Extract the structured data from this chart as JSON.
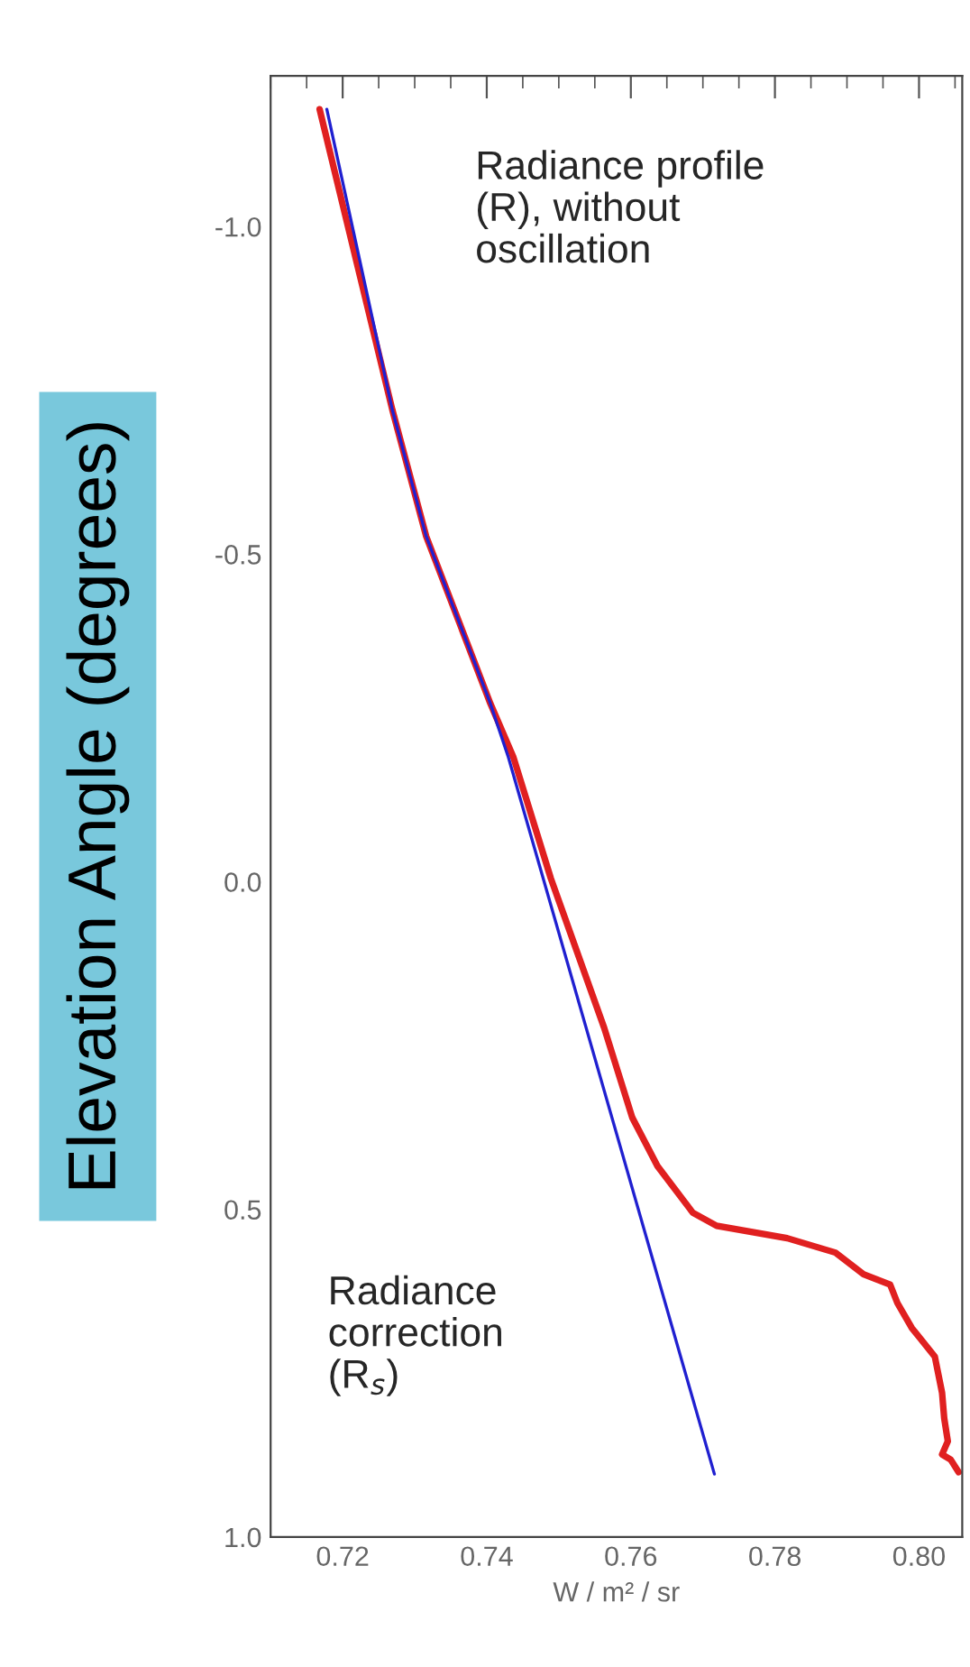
{
  "chart_data": {
    "type": "line",
    "xlabel": "W / m² / sr",
    "ylabel": "Elevation Angle (degrees)",
    "xlim": [
      0.71,
      0.806
    ],
    "xticks": [
      {
        "value": 0.72,
        "label": "0.72"
      },
      {
        "value": 0.74,
        "label": "0.74"
      },
      {
        "value": 0.76,
        "label": "0.76"
      },
      {
        "value": 0.78,
        "label": "0.78"
      },
      {
        "value": 0.8,
        "label": "0.80"
      }
    ],
    "ylim": [
      1.0,
      -1.23
    ],
    "yticks": [
      {
        "value": -1.0,
        "label": "-1.0"
      },
      {
        "value": -0.5,
        "label": "-0.5"
      },
      {
        "value": 0.0,
        "label": "0.0"
      },
      {
        "value": 0.5,
        "label": "0.5"
      },
      {
        "value": 1.0,
        "label": "1.0"
      }
    ],
    "grid": false,
    "legend": false,
    "marker": "none",
    "line_style": "solid",
    "series": [
      {
        "color": "#e02020",
        "x": [
          0.7168,
          0.7269,
          0.7316,
          0.7405,
          0.7437,
          0.7489,
          0.7563,
          0.7602,
          0.7637,
          0.7686,
          0.7719,
          0.7817,
          0.7884,
          0.7923,
          0.796,
          0.797,
          0.799,
          0.8022,
          0.8032,
          0.8035,
          0.804,
          0.8032,
          0.8044,
          0.8055
        ],
        "values": [
          -1.179,
          -0.72,
          -0.527,
          -0.272,
          -0.19,
          -0.005,
          0.223,
          0.36,
          0.434,
          0.505,
          0.525,
          0.544,
          0.566,
          0.599,
          0.615,
          0.643,
          0.681,
          0.725,
          0.78,
          0.819,
          0.854,
          0.874,
          0.882,
          0.901
        ]
      },
      {
        "color": "#2020d0",
        "x": [
          0.7178,
          0.7269,
          0.7316,
          0.7405,
          0.743,
          0.7716
        ],
        "values": [
          -1.179,
          -0.72,
          -0.527,
          -0.272,
          -0.19,
          0.904
        ]
      }
    ],
    "annotations": [
      "Radiance profile\n(R), without\noscillation",
      "Radiance\ncorrection\n(R$_{s}$)"
    ]
  }
}
